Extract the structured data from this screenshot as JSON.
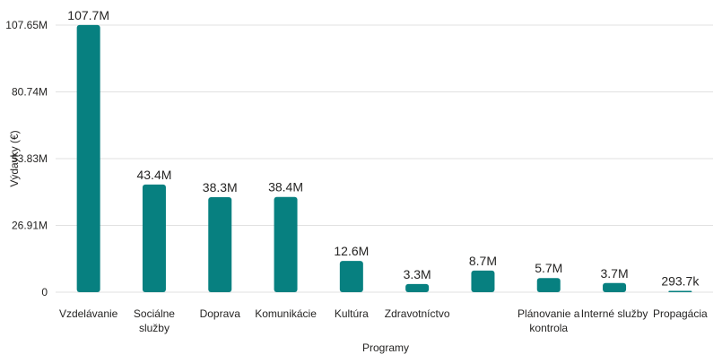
{
  "chart_data": {
    "type": "bar",
    "xlabel": "Programy",
    "ylabel": "Výdavky (€)",
    "ylim": [
      0,
      107.65
    ],
    "yticks": [
      {
        "value": 0,
        "label": "0"
      },
      {
        "value": 26.91,
        "label": "26.91M"
      },
      {
        "value": 53.83,
        "label": "53.83M"
      },
      {
        "value": 80.74,
        "label": "80.74M"
      },
      {
        "value": 107.65,
        "label": "107.65M"
      }
    ],
    "grid": true,
    "bar_color": "#078080",
    "categories": [
      [
        "Vzdelávanie"
      ],
      [
        "Sociálne",
        "služby"
      ],
      [
        "Doprava"
      ],
      [
        "Komunikácie"
      ],
      [
        "Kultúra"
      ],
      [
        "Zdravotníctvo"
      ],
      [],
      [
        "Plánovanie a",
        "kontrola"
      ],
      [
        "Interné služby"
      ],
      [
        "Propagácia"
      ]
    ],
    "values": [
      107.7,
      43.4,
      38.3,
      38.4,
      12.6,
      3.3,
      8.7,
      5.7,
      3.7,
      0.2937
    ],
    "data_labels": [
      "107.7M",
      "43.4M",
      "38.3M",
      "38.4M",
      "12.6M",
      "3.3M",
      "8.7M",
      "5.7M",
      "3.7M",
      "293.7k"
    ]
  }
}
